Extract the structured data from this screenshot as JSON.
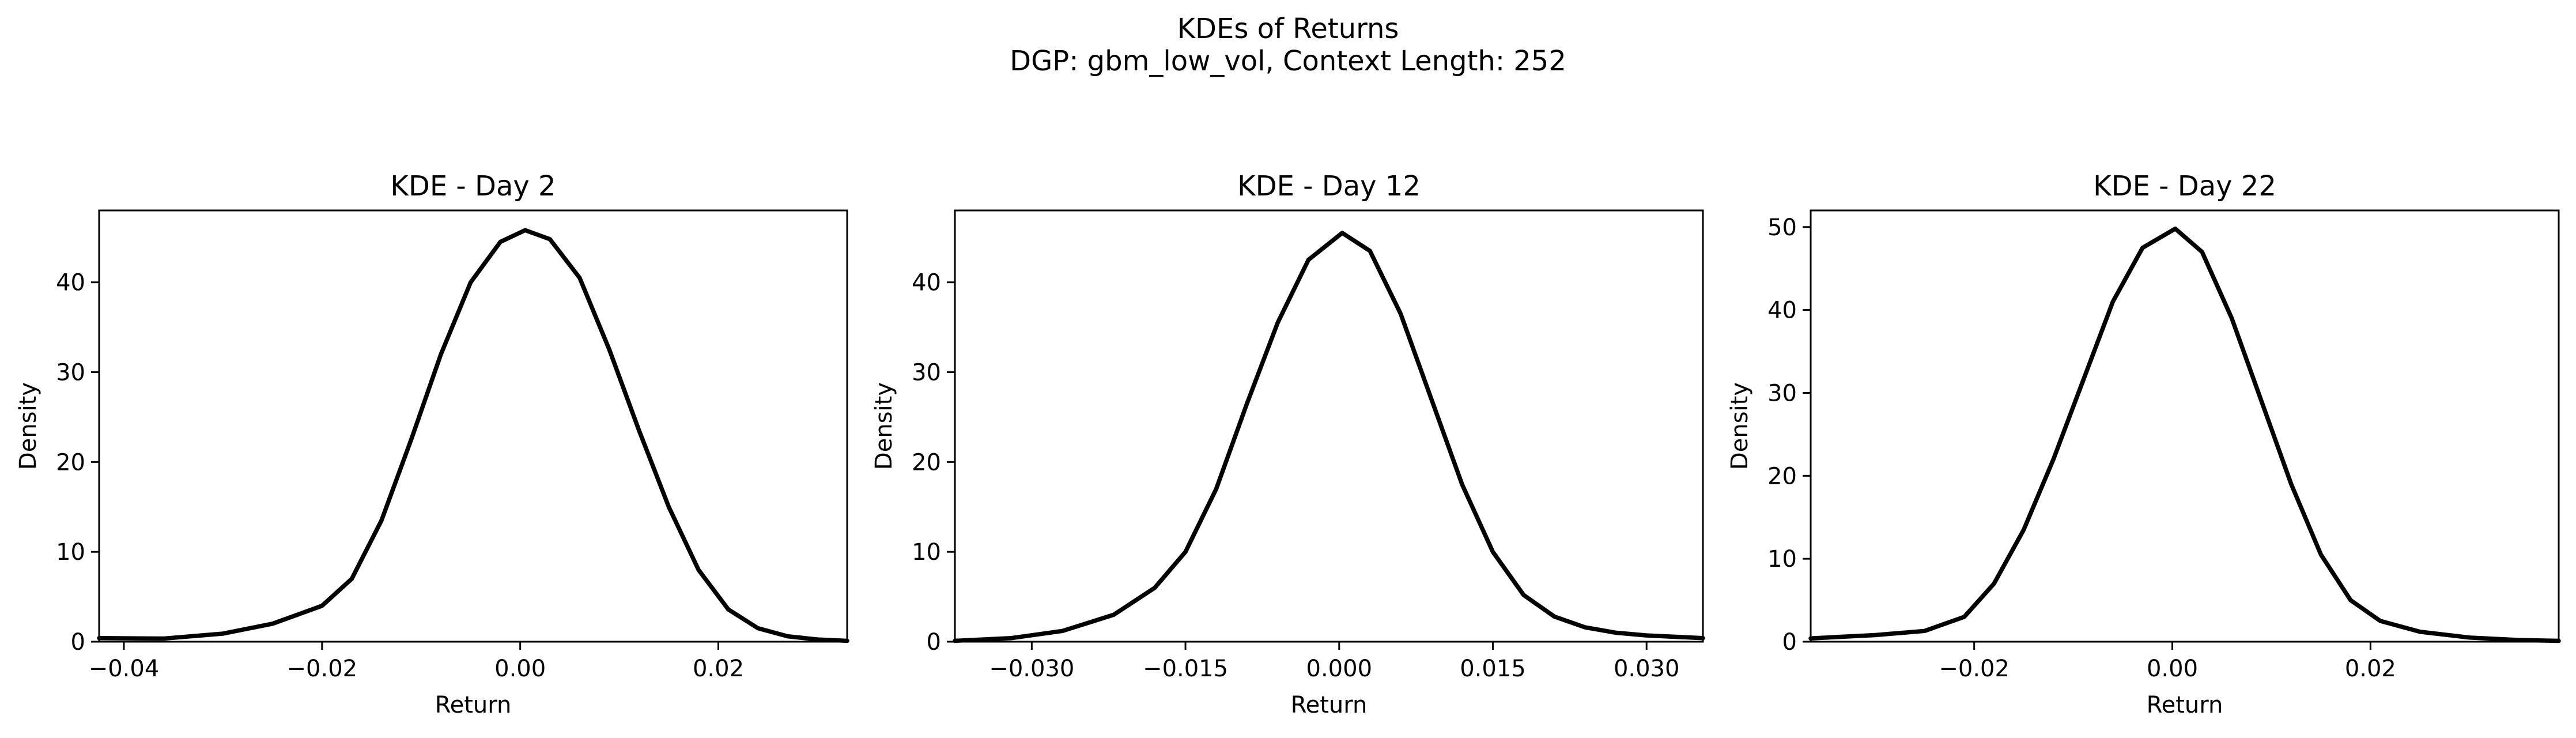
{
  "figure": {
    "title_line1": "KDEs of Returns",
    "title_line2": "DGP: gbm_low_vol, Context Length: 252"
  },
  "chart_data": [
    {
      "type": "line",
      "title": "KDE - Day 2",
      "xlabel": "Return",
      "ylabel": "Density",
      "xlim": [
        -0.0425,
        0.033
      ],
      "ylim": [
        0,
        48
      ],
      "xticks": [
        -0.04,
        -0.02,
        0.0,
        0.02
      ],
      "xtick_labels": [
        "−0.04",
        "−0.02",
        "0.00",
        "0.02"
      ],
      "yticks": [
        0,
        10,
        20,
        30,
        40
      ],
      "ytick_labels": [
        "0",
        "10",
        "20",
        "30",
        "40"
      ],
      "color": "#000000",
      "x": [
        -0.0425,
        -0.036,
        -0.03,
        -0.025,
        -0.02,
        -0.017,
        -0.014,
        -0.011,
        -0.008,
        -0.005,
        -0.002,
        0.0005,
        0.003,
        0.006,
        0.009,
        0.012,
        0.015,
        0.018,
        0.021,
        0.024,
        0.027,
        0.03,
        0.033
      ],
      "y": [
        0.4,
        0.35,
        0.9,
        2.0,
        4.0,
        7.0,
        13.5,
        22.5,
        32.0,
        40.0,
        44.5,
        45.8,
        44.8,
        40.5,
        32.5,
        23.5,
        15.0,
        8.0,
        3.6,
        1.5,
        0.6,
        0.25,
        0.1
      ]
    },
    {
      "type": "line",
      "title": "KDE - Day 12",
      "xlabel": "Return",
      "ylabel": "Density",
      "xlim": [
        -0.0375,
        0.0355
      ],
      "ylim": [
        0,
        48
      ],
      "xticks": [
        -0.03,
        -0.015,
        0.0,
        0.015,
        0.03
      ],
      "xtick_labels": [
        "−0.030",
        "−0.015",
        "0.000",
        "0.015",
        "0.030"
      ],
      "yticks": [
        0,
        10,
        20,
        30,
        40
      ],
      "ytick_labels": [
        "0",
        "10",
        "20",
        "30",
        "40"
      ],
      "color": "#000000",
      "x": [
        -0.0375,
        -0.032,
        -0.027,
        -0.022,
        -0.018,
        -0.015,
        -0.012,
        -0.009,
        -0.006,
        -0.003,
        0.0003,
        0.003,
        0.006,
        0.009,
        0.012,
        0.015,
        0.018,
        0.021,
        0.024,
        0.027,
        0.03,
        0.0355
      ],
      "y": [
        0.1,
        0.4,
        1.2,
        3.0,
        6.0,
        10.0,
        17.0,
        26.5,
        35.5,
        42.5,
        45.5,
        43.5,
        36.5,
        27.0,
        17.5,
        10.0,
        5.2,
        2.8,
        1.6,
        1.0,
        0.7,
        0.4
      ]
    },
    {
      "type": "line",
      "title": "KDE - Day 22",
      "xlabel": "Return",
      "ylabel": "Density",
      "xlim": [
        -0.0365,
        0.039
      ],
      "ylim": [
        0,
        52
      ],
      "xticks": [
        -0.02,
        0.0,
        0.02
      ],
      "xtick_labels": [
        "−0.02",
        "0.00",
        "0.02"
      ],
      "yticks": [
        0,
        10,
        20,
        30,
        40,
        50
      ],
      "ytick_labels": [
        "0",
        "10",
        "20",
        "30",
        "40",
        "50"
      ],
      "color": "#000000",
      "x": [
        -0.0365,
        -0.03,
        -0.025,
        -0.021,
        -0.018,
        -0.015,
        -0.012,
        -0.009,
        -0.006,
        -0.003,
        0.0003,
        0.003,
        0.006,
        0.009,
        0.012,
        0.015,
        0.018,
        0.021,
        0.025,
        0.03,
        0.035,
        0.039
      ],
      "y": [
        0.4,
        0.8,
        1.3,
        3.0,
        7.0,
        13.5,
        22.0,
        31.5,
        41.0,
        47.5,
        49.8,
        47.0,
        39.0,
        29.0,
        19.0,
        10.5,
        5.0,
        2.5,
        1.2,
        0.5,
        0.2,
        0.1
      ]
    }
  ]
}
